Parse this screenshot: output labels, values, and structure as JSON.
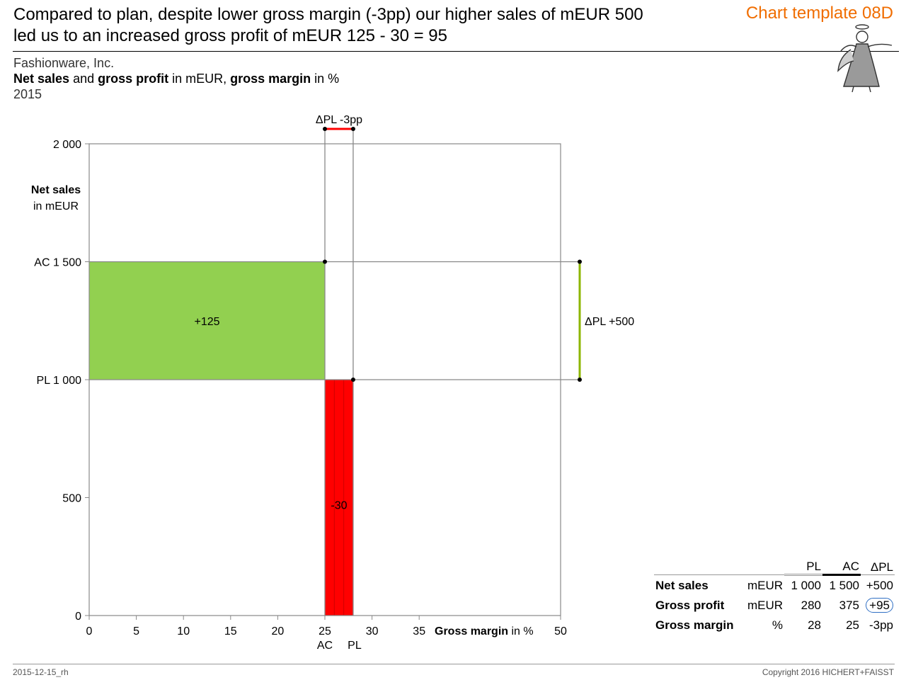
{
  "header": {
    "title_line1": "Compared to plan, despite lower gross margin (-3pp) our higher sales of mEUR 500",
    "title_line2": "led us to an increased gross profit of mEUR 125 - 30 = 95",
    "template_tag": "Chart template 08D",
    "company": "Fashionware, Inc.",
    "measure_b1": "Net sales",
    "measure_t1": " and ",
    "measure_b2": "gross profit",
    "measure_t2": " in mEUR, ",
    "measure_b3": "gross margin",
    "measure_t3": " in %",
    "period": "2015"
  },
  "chart_data": {
    "type": "area",
    "x_axis": {
      "label_bold": "Gross margin",
      "label_unit": " in %",
      "range": [
        0,
        50
      ],
      "ticks": [
        "0",
        "5",
        "10",
        "15",
        "20",
        "25",
        "30",
        "35",
        "50"
      ]
    },
    "y_axis": {
      "label_bold": "Net sales",
      "label_unit": "in mEUR",
      "range": [
        0,
        2000
      ],
      "ticks": [
        {
          "value": 0,
          "label": "0"
        },
        {
          "value": 500,
          "label": "500"
        },
        {
          "value": 1000,
          "label": "PL 1 000"
        },
        {
          "value": 1500,
          "label": "AC 1 500"
        },
        {
          "value": 2000,
          "label": "2 000"
        }
      ]
    },
    "scenarios": [
      {
        "name": "AC",
        "gross_margin": 25,
        "net_sales": 1500
      },
      {
        "name": "PL",
        "gross_margin": 28,
        "net_sales": 1000
      }
    ],
    "x_marker_labels": [
      "AC",
      "PL"
    ],
    "areas": [
      {
        "label": "+125",
        "x": [
          0,
          25
        ],
        "y": [
          1000,
          1500
        ],
        "color": "#92d050"
      },
      {
        "label": "-30",
        "x": [
          25,
          28
        ],
        "y": [
          0,
          1000
        ],
        "color": "#ff0000"
      }
    ],
    "delta_margin_label": "ΔPL -3pp",
    "delta_margin_color": "#ff0000",
    "delta_sales_label": "ΔPL +500",
    "delta_sales_color": "#8db600"
  },
  "table": {
    "headers": [
      "",
      "",
      "PL",
      "AC",
      "ΔPL"
    ],
    "rows": [
      {
        "label": "Net sales",
        "unit": "mEUR",
        "pl": "1 000",
        "ac": "1 500",
        "delta": "+500"
      },
      {
        "label": "Gross profit",
        "unit": "mEUR",
        "pl": "280",
        "ac": "375",
        "delta": "+95"
      },
      {
        "label": "Gross margin",
        "unit": "%",
        "pl": "28",
        "ac": "25",
        "delta": "-3pp"
      }
    ]
  },
  "footer": {
    "left": "2015-12-15_rh",
    "right": "Copyright 2016 HICHERT+FAISST"
  }
}
